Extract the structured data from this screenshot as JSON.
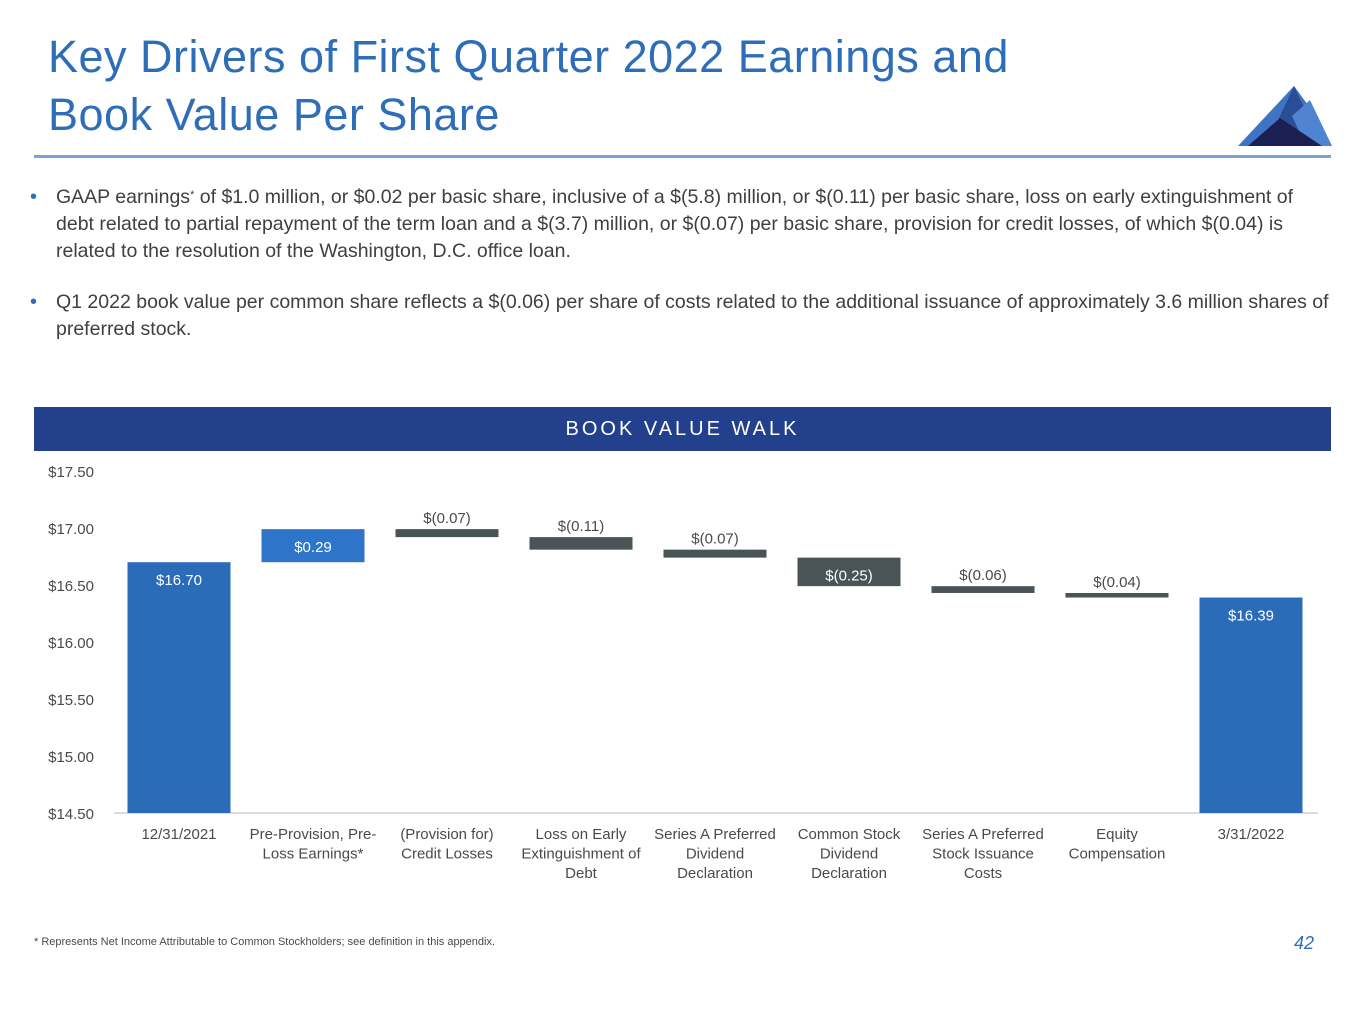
{
  "slide": {
    "title": "Key Drivers of First Quarter 2022 Earnings and Book Value Per Share",
    "title_line1": "Key Drivers of First Quarter 2022 Earnings and",
    "title_line2": "Book Value Per Share",
    "logo_icon": "mountain-logo-icon",
    "bullets": [
      {
        "prefix": "GAAP earnings",
        "sup": "*",
        "text": " of $1.0 million, or $0.02 per basic share, inclusive of a $(5.8) million, or $(0.11) per basic share, loss on early extinguishment of debt related to partial repayment of the term loan and a $(3.7) million, or $(0.07) per basic share, provision for credit losses, of which $(0.04) is related to the resolution of the Washington, D.C. office loan."
      },
      {
        "prefix": "Q1 2022 book value per common share reflects a $(0.06) per share of costs related to the additional issuance of approximately 3.6 million shares of preferred stock.",
        "sup": "",
        "text": ""
      }
    ],
    "section_header": "BOOK VALUE WALK",
    "footnote": "* Represents Net Income Attributable to Common Stockholders; see definition in this appendix.",
    "page_number": "42",
    "colors": {
      "title": "#2e6db8",
      "band": "#22408c",
      "total_bar": "#2b6cb9",
      "increase_bar": "#2e75c9",
      "decrease_bar": "#4a5356",
      "axis_text": "#4a4a4a"
    }
  },
  "chart_data": {
    "type": "bar",
    "subtype": "waterfall",
    "title": "BOOK VALUE WALK",
    "xlabel": "",
    "ylabel": "",
    "ylim": [
      14.5,
      17.5
    ],
    "yticks": [
      14.5,
      15.0,
      15.5,
      16.0,
      16.5,
      17.0,
      17.5
    ],
    "ytick_labels": [
      "$14.50",
      "$15.00",
      "$15.50",
      "$16.00",
      "$16.50",
      "$17.00",
      "$17.50"
    ],
    "grid": false,
    "legend": "none",
    "categories": [
      [
        "12/31/2021"
      ],
      [
        "Pre-Provision, Pre-",
        "Loss Earnings*"
      ],
      [
        "(Provision for)",
        "Credit Losses"
      ],
      [
        "Loss on Early",
        "Extinguishment of",
        "Debt"
      ],
      [
        "Series A Preferred",
        "Dividend",
        "Declaration"
      ],
      [
        "Common Stock",
        "Dividend",
        "Declaration"
      ],
      [
        "Series A Preferred",
        "Stock Issuance",
        "Costs"
      ],
      [
        "Equity",
        "Compensation"
      ],
      [
        "3/31/2022"
      ]
    ],
    "values": [
      16.7,
      0.29,
      -0.07,
      -0.11,
      -0.07,
      -0.25,
      -0.06,
      -0.04,
      16.39
    ],
    "kinds": [
      "total",
      "increase",
      "decrease",
      "decrease",
      "decrease",
      "decrease",
      "decrease",
      "decrease",
      "total"
    ],
    "data_labels": [
      "$16.70",
      "$0.29",
      "$(0.07)",
      "$(0.11)",
      "$(0.07)",
      "$(0.25)",
      "$(0.06)",
      "$(0.04)",
      "$16.39"
    ]
  }
}
